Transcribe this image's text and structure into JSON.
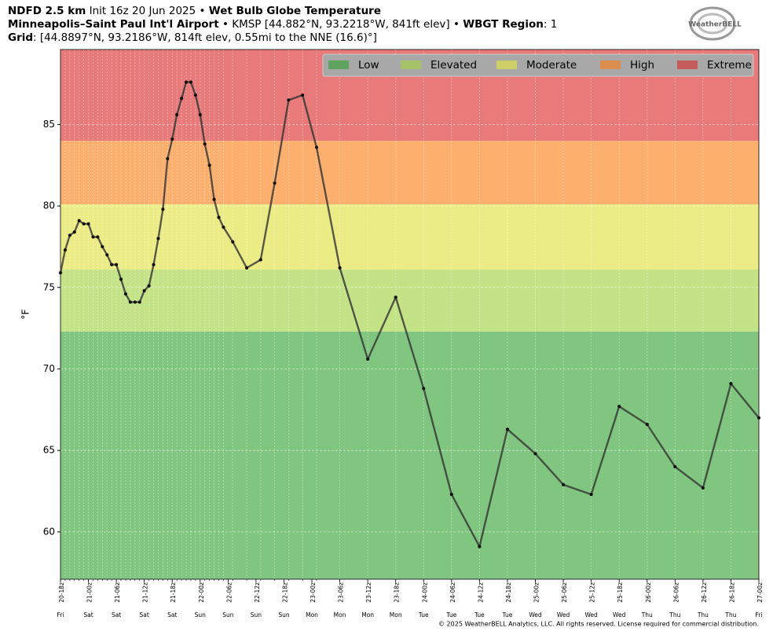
{
  "chart_data": {
    "type": "line",
    "title_lines": [
      [
        {
          "text": "NDFD 2.5 km",
          "bold": true
        },
        {
          "text": " Init 16z 20 Jun 2025 • ",
          "bold": false
        },
        {
          "text": "Wet Bulb Globe Temperature",
          "bold": true
        }
      ],
      [
        {
          "text": "Minneapolis–Saint Paul Int'l Airport",
          "bold": true
        },
        {
          "text": " • KMSP [44.882°N, 93.2218°W, 841ft elev] • ",
          "bold": false
        },
        {
          "text": "WBGT Region",
          "bold": true
        },
        {
          "text": ": 1",
          "bold": false
        }
      ],
      [
        {
          "text": "Grid",
          "bold": true
        },
        {
          "text": ": [44.8897°N, 93.2186°W, 814ft elev, 0.55mi to the NNE (16.6)°]",
          "bold": false
        }
      ]
    ],
    "ylabel": "°F",
    "logo": "WeatherBELL",
    "footer": "© 2025 WeatherBELL Analytics, LLC. All rights reserved. License required for commercial distribution.",
    "bands": [
      {
        "name": "Low",
        "color": "#80c680",
        "legend_color": "#5fa35f"
      },
      {
        "name": "Elevated",
        "color": "#c4e286",
        "legend_color": "#a6c36a"
      },
      {
        "name": "Moderate",
        "color": "#ecec86",
        "legend_color": "#cfcf6a"
      },
      {
        "name": "High",
        "color": "#fdb06e",
        "legend_color": "#dc8e4e"
      },
      {
        "name": "Extreme",
        "color": "#e87a7a",
        "legend_color": "#c55a5a"
      }
    ],
    "thresholds": [
      72.3,
      76.1,
      80.1,
      84.0
    ],
    "xlim": [
      0,
      150
    ],
    "ylim": [
      57.1,
      89.6
    ],
    "yticks": [
      60,
      65,
      70,
      75,
      80,
      85
    ],
    "xticks": [
      {
        "value": 0,
        "label": "20-18z"
      },
      {
        "value": 6,
        "label": "21-00z"
      },
      {
        "value": 12,
        "label": "21-06z"
      },
      {
        "value": 18,
        "label": "21-12z"
      },
      {
        "value": 24,
        "label": "21-18z"
      },
      {
        "value": 30,
        "label": "22-00z"
      },
      {
        "value": 36,
        "label": "22-06z"
      },
      {
        "value": 42,
        "label": "22-12z"
      },
      {
        "value": 48,
        "label": "22-18z"
      },
      {
        "value": 54,
        "label": "23-00z"
      },
      {
        "value": 60,
        "label": "23-06z"
      },
      {
        "value": 66,
        "label": "23-12z"
      },
      {
        "value": 72,
        "label": "23-18z"
      },
      {
        "value": 78,
        "label": "24-00z"
      },
      {
        "value": 84,
        "label": "24-06z"
      },
      {
        "value": 90,
        "label": "24-12z"
      },
      {
        "value": 96,
        "label": "24-18z"
      },
      {
        "value": 102,
        "label": "25-00z"
      },
      {
        "value": 108,
        "label": "25-06z"
      },
      {
        "value": 114,
        "label": "25-12z"
      },
      {
        "value": 120,
        "label": "25-18z"
      },
      {
        "value": 126,
        "label": "26-00z"
      },
      {
        "value": 132,
        "label": "26-06z"
      },
      {
        "value": 138,
        "label": "26-12z"
      },
      {
        "value": 144,
        "label": "26-18z"
      },
      {
        "value": 150,
        "label": "27-00z"
      }
    ],
    "xtick_days": [
      "Fri",
      "Sat",
      "Sat",
      "Sat",
      "Sat",
      "Sun",
      "Sun",
      "Sun",
      "Sun",
      "Mon",
      "Mon",
      "Mon",
      "Mon",
      "Tue",
      "Tue",
      "Tue",
      "Tue",
      "Wed",
      "Wed",
      "Wed",
      "Wed",
      "Thu",
      "Thu",
      "Thu",
      "Thu",
      "Fri"
    ],
    "line_color": "#333333",
    "grid": true,
    "legend_position": "upper right",
    "x": [
      0,
      1,
      2,
      3,
      4,
      5,
      6,
      7,
      8,
      9,
      10,
      11,
      12,
      13,
      14,
      15,
      16,
      17,
      18,
      19,
      20,
      21,
      22,
      23,
      24,
      25,
      26,
      27,
      28,
      29,
      30,
      31,
      32,
      33,
      34,
      35,
      37,
      40,
      43,
      46,
      49,
      52,
      55,
      60,
      66,
      72,
      78,
      84,
      90,
      96,
      102,
      108,
      114,
      120,
      126,
      132,
      138,
      144,
      150
    ],
    "series": [
      {
        "name": "WBGT",
        "values": [
          75.9,
          77.3,
          78.2,
          78.4,
          79.1,
          78.9,
          78.9,
          78.1,
          78.1,
          77.5,
          77.0,
          76.4,
          76.4,
          75.5,
          74.6,
          74.1,
          74.1,
          74.1,
          74.8,
          75.1,
          76.4,
          78.0,
          79.8,
          82.9,
          84.1,
          85.6,
          86.6,
          87.6,
          87.6,
          86.8,
          85.6,
          83.8,
          82.5,
          80.4,
          79.3,
          78.7,
          77.8,
          76.2,
          76.7,
          81.4,
          86.5,
          86.8,
          83.6,
          76.2,
          70.6,
          74.4,
          68.8,
          62.3,
          59.1,
          66.3,
          64.8,
          62.9,
          62.3,
          67.7,
          66.6,
          64.0,
          62.7,
          69.1,
          67.0
        ]
      }
    ]
  }
}
